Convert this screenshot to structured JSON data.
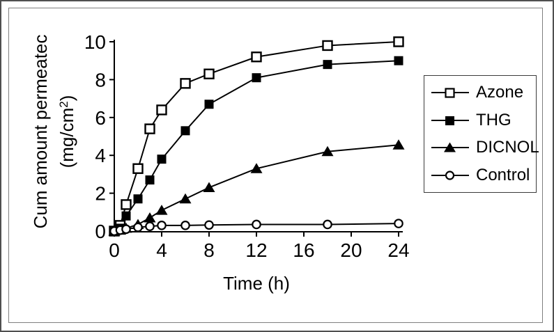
{
  "chart_data": {
    "type": "line",
    "title": "",
    "xlabel": "Time (h)",
    "ylabel": "Cum amount permeatec",
    "ylabel_unit": {
      "prefix": "(mg/cm",
      "sup": "2",
      "suffix": ")"
    },
    "x": [
      0,
      0.5,
      1,
      2,
      3,
      4,
      6,
      8,
      12,
      18,
      24
    ],
    "series": [
      {
        "name": "Azone",
        "marker": "open-square",
        "values": [
          0,
          0.3,
          1.4,
          3.3,
          5.4,
          6.4,
          7.8,
          8.3,
          9.2,
          9.8,
          10.0
        ]
      },
      {
        "name": "THG",
        "marker": "filled-square",
        "values": [
          0,
          0.15,
          0.8,
          1.7,
          2.7,
          3.8,
          5.3,
          6.7,
          8.1,
          8.8,
          9.0
        ]
      },
      {
        "name": "DICNOL",
        "marker": "filled-triangle",
        "values": [
          0,
          0.05,
          0.15,
          0.35,
          0.7,
          1.1,
          1.7,
          2.3,
          3.3,
          4.2,
          4.55
        ]
      },
      {
        "name": "Control",
        "marker": "open-circle",
        "values": [
          0,
          0.05,
          0.1,
          0.2,
          0.25,
          0.3,
          0.3,
          0.32,
          0.35,
          0.35,
          0.4
        ]
      }
    ],
    "x_ticks": [
      0,
      4,
      8,
      12,
      16,
      20,
      24
    ],
    "y_ticks": [
      0,
      2,
      4,
      6,
      8,
      10
    ],
    "xlim": [
      0,
      24
    ],
    "ylim": [
      0,
      10
    ],
    "grid": false,
    "legend_position": "right",
    "series_color": "#000000",
    "background": "#ffffff"
  }
}
